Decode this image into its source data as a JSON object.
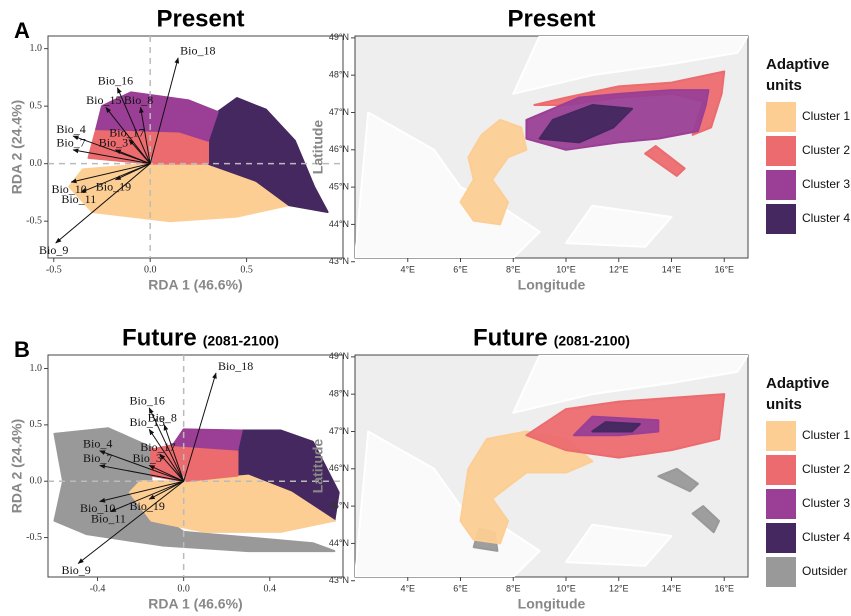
{
  "chart_data": [
    {
      "type": "biplot",
      "panel_label": "A",
      "title": "Present",
      "xlabel": "RDA 1 (46.6%)",
      "ylabel": "RDA 2 (24.4%)",
      "xlim": [
        -0.53,
        1.0
      ],
      "ylim": [
        -0.82,
        1.11
      ],
      "xticks": [
        -0.5,
        {
          "value": 0,
          "label": "0.0"
        },
        0.5
      ],
      "yticks": [
        -0.5,
        {
          "value": 0,
          "label": "0.0"
        },
        0.5,
        {
          "value": 1,
          "label": "1.0"
        }
      ],
      "cluster_colors": [
        "#fcce94",
        "#ec6b6f",
        "#9a3f95",
        "#45285f"
      ],
      "arrows": [
        {
          "name": "Bio_18",
          "x": 0.145,
          "y": 0.92
        },
        {
          "name": "Bio_16",
          "x": -0.17,
          "y": 0.66
        },
        {
          "name": "Bio_8",
          "x": -0.05,
          "y": 0.49
        },
        {
          "name": "Bio_15",
          "x": -0.23,
          "y": 0.49
        },
        {
          "name": "Bio_4",
          "x": -0.4,
          "y": 0.24
        },
        {
          "name": "Bio_7",
          "x": -0.4,
          "y": 0.12
        },
        {
          "name": "Bio_3",
          "x": -0.18,
          "y": 0.12
        },
        {
          "name": "Bio_17",
          "x": -0.11,
          "y": 0.21
        },
        {
          "name": "Bio_10",
          "x": -0.41,
          "y": -0.16
        },
        {
          "name": "Bio_11",
          "x": -0.36,
          "y": -0.25
        },
        {
          "name": "Bio_19",
          "x": -0.18,
          "y": -0.14
        },
        {
          "name": "Bio_9",
          "x": -0.49,
          "y": -0.69
        }
      ]
    },
    {
      "type": "map",
      "title": "Present",
      "xlabel": "Longitude",
      "ylabel": "Latitude",
      "xlim": [
        2.0,
        16.9
      ],
      "ylim": [
        43.1,
        49.05
      ],
      "xticks": [
        {
          "value": 4,
          "label": "4°E"
        },
        {
          "value": 6,
          "label": "6°E"
        },
        {
          "value": 8,
          "label": "8°E"
        },
        {
          "value": 10,
          "label": "10°E"
        },
        {
          "value": 12,
          "label": "12°E"
        },
        {
          "value": 14,
          "label": "14°E"
        },
        {
          "value": 16,
          "label": "16°E"
        }
      ],
      "yticks": [
        {
          "value": 43,
          "label": "43°N"
        },
        {
          "value": 44,
          "label": "44°N"
        },
        {
          "value": 45,
          "label": "45°N"
        },
        {
          "value": 46,
          "label": "46°N"
        },
        {
          "value": 47,
          "label": "47°N"
        },
        {
          "value": 48,
          "label": "48°N"
        },
        {
          "value": 49,
          "label": "49°N"
        }
      ],
      "legend_title": "Adaptive units",
      "series": [
        {
          "name": "Cluster 1",
          "color": "#fcce94"
        },
        {
          "name": "Cluster 2",
          "color": "#ec6b6f"
        },
        {
          "name": "Cluster 3",
          "color": "#9a3f95"
        },
        {
          "name": "Cluster 4",
          "color": "#45285f"
        }
      ]
    },
    {
      "type": "biplot",
      "panel_label": "B",
      "title": "Future",
      "subtitle": "(2081-2100)",
      "xlabel": "RDA 1 (46.6%)",
      "ylabel": "RDA 2 (24.4%)",
      "xlim": [
        -0.63,
        0.74
      ],
      "ylim": [
        -0.85,
        1.12
      ],
      "xticks": [
        -0.4,
        {
          "value": 0,
          "label": "0.0"
        },
        0.4
      ],
      "yticks": [
        -0.5,
        {
          "value": 0,
          "label": "0.0"
        },
        0.5,
        {
          "value": 1,
          "label": "1.0"
        }
      ],
      "cluster_colors": [
        "#fcce94",
        "#ec6b6f",
        "#9a3f95",
        "#45285f",
        "#999999"
      ],
      "arrows": [
        {
          "name": "Bio_18",
          "x": 0.15,
          "y": 0.96
        },
        {
          "name": "Bio_16",
          "x": -0.16,
          "y": 0.65
        },
        {
          "name": "Bio_8",
          "x": -0.09,
          "y": 0.5
        },
        {
          "name": "Bio_15",
          "x": -0.16,
          "y": 0.46
        },
        {
          "name": "Bio_4",
          "x": -0.39,
          "y": 0.27
        },
        {
          "name": "Bio_7",
          "x": -0.39,
          "y": 0.14
        },
        {
          "name": "Bio_3",
          "x": -0.16,
          "y": 0.14
        },
        {
          "name": "Bio_17",
          "x": -0.11,
          "y": 0.24
        },
        {
          "name": "Bio_10",
          "x": -0.39,
          "y": -0.18
        },
        {
          "name": "Bio_11",
          "x": -0.34,
          "y": -0.27
        },
        {
          "name": "Bio_19",
          "x": -0.16,
          "y": -0.16
        },
        {
          "name": "Bio_9",
          "x": -0.49,
          "y": -0.73
        }
      ]
    },
    {
      "type": "map",
      "title": "Future",
      "subtitle": "(2081-2100)",
      "xlabel": "Longitude",
      "ylabel": "Latitude",
      "xlim": [
        2.0,
        16.9
      ],
      "ylim": [
        43.1,
        49.05
      ],
      "xticks": [
        {
          "value": 4,
          "label": "4°E"
        },
        {
          "value": 6,
          "label": "6°E"
        },
        {
          "value": 8,
          "label": "8°E"
        },
        {
          "value": 10,
          "label": "10°E"
        },
        {
          "value": 12,
          "label": "12°E"
        },
        {
          "value": 14,
          "label": "14°E"
        },
        {
          "value": 16,
          "label": "16°E"
        }
      ],
      "yticks": [
        {
          "value": 43,
          "label": "43°N"
        },
        {
          "value": 44,
          "label": "44°N"
        },
        {
          "value": 45,
          "label": "45°N"
        },
        {
          "value": 46,
          "label": "46°N"
        },
        {
          "value": 47,
          "label": "47°N"
        },
        {
          "value": 48,
          "label": "48°N"
        },
        {
          "value": 49,
          "label": "49°N"
        }
      ],
      "legend_title": "Adaptive units",
      "series": [
        {
          "name": "Cluster 1",
          "color": "#fcce94"
        },
        {
          "name": "Cluster 2",
          "color": "#ec6b6f"
        },
        {
          "name": "Cluster 3",
          "color": "#9a3f95"
        },
        {
          "name": "Cluster 4",
          "color": "#45285f"
        },
        {
          "name": "Outsider",
          "color": "#999999"
        }
      ]
    }
  ]
}
